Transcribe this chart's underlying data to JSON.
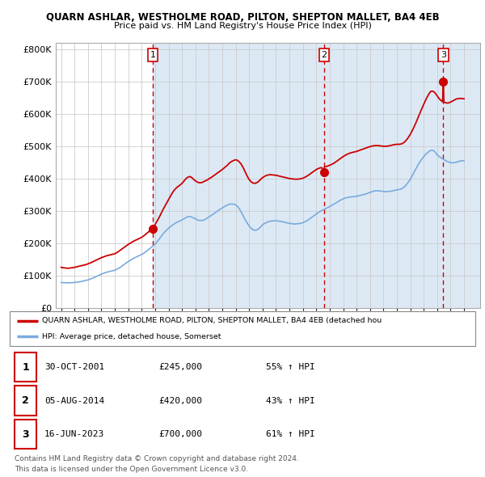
{
  "title": "QUARN ASHLAR, WESTHOLME ROAD, PILTON, SHEPTON MALLET, BA4 4EB",
  "subtitle": "Price paid vs. HM Land Registry's House Price Index (HPI)",
  "ylabel_ticks": [
    "£0",
    "£100K",
    "£200K",
    "£300K",
    "£400K",
    "£500K",
    "£600K",
    "£700K",
    "£800K"
  ],
  "ytick_values": [
    0,
    100000,
    200000,
    300000,
    400000,
    500000,
    600000,
    700000,
    800000
  ],
  "ylim": [
    0,
    820000
  ],
  "xlim_start": 1994.6,
  "xlim_end": 2026.2,
  "red_color": "#cc0000",
  "blue_color": "#7aaadd",
  "shade_color": "#dce9f5",
  "dashed_color": "#cc0000",
  "grid_color": "#cccccc",
  "legend_label_red": "QUARN ASHLAR, WESTHOLME ROAD, PILTON, SHEPTON MALLET, BA4 4EB (detached hou",
  "legend_label_blue": "HPI: Average price, detached house, Somerset",
  "sale_points": [
    {
      "date_num": 2001.83,
      "price": 245000,
      "label": "1"
    },
    {
      "date_num": 2014.59,
      "price": 420000,
      "label": "2"
    },
    {
      "date_num": 2023.46,
      "price": 700000,
      "label": "3"
    }
  ],
  "table_rows": [
    {
      "num": "1",
      "date": "30-OCT-2001",
      "price": "£245,000",
      "hpi": "55% ↑ HPI"
    },
    {
      "num": "2",
      "date": "05-AUG-2014",
      "price": "£420,000",
      "hpi": "43% ↑ HPI"
    },
    {
      "num": "3",
      "date": "16-JUN-2023",
      "price": "£700,000",
      "hpi": "61% ↑ HPI"
    }
  ],
  "footnote1": "Contains HM Land Registry data © Crown copyright and database right 2024.",
  "footnote2": "This data is licensed under the Open Government Licence v3.0.",
  "red_hpi_data": [
    [
      1995.0,
      125000
    ],
    [
      1995.1,
      124000
    ],
    [
      1995.2,
      123500
    ],
    [
      1995.3,
      123000
    ],
    [
      1995.4,
      122500
    ],
    [
      1995.5,
      122000
    ],
    [
      1995.6,
      122500
    ],
    [
      1995.7,
      123000
    ],
    [
      1995.8,
      123500
    ],
    [
      1995.9,
      124000
    ],
    [
      1996.0,
      125000
    ],
    [
      1996.1,
      126000
    ],
    [
      1996.2,
      127000
    ],
    [
      1996.3,
      128000
    ],
    [
      1996.5,
      130000
    ],
    [
      1996.7,
      132000
    ],
    [
      1996.9,
      134000
    ],
    [
      1997.0,
      136000
    ],
    [
      1997.2,
      139000
    ],
    [
      1997.4,
      143000
    ],
    [
      1997.6,
      147000
    ],
    [
      1997.8,
      151000
    ],
    [
      1998.0,
      155000
    ],
    [
      1998.2,
      158000
    ],
    [
      1998.4,
      161000
    ],
    [
      1998.6,
      163000
    ],
    [
      1998.8,
      165000
    ],
    [
      1999.0,
      167000
    ],
    [
      1999.2,
      172000
    ],
    [
      1999.4,
      178000
    ],
    [
      1999.6,
      184000
    ],
    [
      1999.8,
      190000
    ],
    [
      2000.0,
      196000
    ],
    [
      2000.2,
      201000
    ],
    [
      2000.4,
      206000
    ],
    [
      2000.6,
      210000
    ],
    [
      2000.8,
      214000
    ],
    [
      2001.0,
      218000
    ],
    [
      2001.2,
      224000
    ],
    [
      2001.4,
      231000
    ],
    [
      2001.6,
      238000
    ],
    [
      2001.83,
      245000
    ],
    [
      2002.0,
      258000
    ],
    [
      2002.2,
      272000
    ],
    [
      2002.4,
      288000
    ],
    [
      2002.6,
      305000
    ],
    [
      2002.8,
      320000
    ],
    [
      2003.0,
      335000
    ],
    [
      2003.2,
      350000
    ],
    [
      2003.4,
      363000
    ],
    [
      2003.6,
      372000
    ],
    [
      2003.8,
      378000
    ],
    [
      2004.0,
      385000
    ],
    [
      2004.1,
      390000
    ],
    [
      2004.2,
      395000
    ],
    [
      2004.3,
      400000
    ],
    [
      2004.4,
      403000
    ],
    [
      2004.5,
      405000
    ],
    [
      2004.6,
      406000
    ],
    [
      2004.7,
      404000
    ],
    [
      2004.8,
      400000
    ],
    [
      2004.9,
      396000
    ],
    [
      2005.0,
      393000
    ],
    [
      2005.1,
      390000
    ],
    [
      2005.2,
      388000
    ],
    [
      2005.3,
      387000
    ],
    [
      2005.4,
      387000
    ],
    [
      2005.5,
      388000
    ],
    [
      2005.6,
      390000
    ],
    [
      2005.7,
      392000
    ],
    [
      2005.8,
      394000
    ],
    [
      2005.9,
      396000
    ],
    [
      2006.0,
      399000
    ],
    [
      2006.2,
      404000
    ],
    [
      2006.4,
      410000
    ],
    [
      2006.6,
      416000
    ],
    [
      2006.8,
      422000
    ],
    [
      2007.0,
      428000
    ],
    [
      2007.2,
      435000
    ],
    [
      2007.4,
      442000
    ],
    [
      2007.5,
      447000
    ],
    [
      2007.6,
      450000
    ],
    [
      2007.7,
      453000
    ],
    [
      2007.8,
      455000
    ],
    [
      2007.9,
      457000
    ],
    [
      2008.0,
      458000
    ],
    [
      2008.1,
      457000
    ],
    [
      2008.2,
      454000
    ],
    [
      2008.3,
      450000
    ],
    [
      2008.4,
      445000
    ],
    [
      2008.5,
      438000
    ],
    [
      2008.6,
      430000
    ],
    [
      2008.7,
      421000
    ],
    [
      2008.8,
      412000
    ],
    [
      2008.9,
      404000
    ],
    [
      2009.0,
      397000
    ],
    [
      2009.1,
      392000
    ],
    [
      2009.2,
      388000
    ],
    [
      2009.3,
      386000
    ],
    [
      2009.4,
      385000
    ],
    [
      2009.5,
      386000
    ],
    [
      2009.6,
      388000
    ],
    [
      2009.7,
      391000
    ],
    [
      2009.8,
      395000
    ],
    [
      2009.9,
      399000
    ],
    [
      2010.0,
      403000
    ],
    [
      2010.2,
      408000
    ],
    [
      2010.4,
      411000
    ],
    [
      2010.6,
      412000
    ],
    [
      2010.8,
      411000
    ],
    [
      2011.0,
      410000
    ],
    [
      2011.2,
      408000
    ],
    [
      2011.4,
      406000
    ],
    [
      2011.6,
      404000
    ],
    [
      2011.8,
      402000
    ],
    [
      2012.0,
      400000
    ],
    [
      2012.2,
      399000
    ],
    [
      2012.4,
      398000
    ],
    [
      2012.6,
      398000
    ],
    [
      2012.8,
      399000
    ],
    [
      2013.0,
      401000
    ],
    [
      2013.2,
      405000
    ],
    [
      2013.4,
      410000
    ],
    [
      2013.6,
      416000
    ],
    [
      2013.8,
      422000
    ],
    [
      2014.0,
      428000
    ],
    [
      2014.2,
      432000
    ],
    [
      2014.4,
      434000
    ],
    [
      2014.59,
      420000
    ],
    [
      2014.6,
      436000
    ],
    [
      2014.8,
      438000
    ],
    [
      2015.0,
      441000
    ],
    [
      2015.2,
      445000
    ],
    [
      2015.4,
      450000
    ],
    [
      2015.6,
      456000
    ],
    [
      2015.8,
      462000
    ],
    [
      2016.0,
      468000
    ],
    [
      2016.2,
      473000
    ],
    [
      2016.4,
      477000
    ],
    [
      2016.6,
      480000
    ],
    [
      2016.8,
      482000
    ],
    [
      2017.0,
      484000
    ],
    [
      2017.2,
      487000
    ],
    [
      2017.4,
      490000
    ],
    [
      2017.6,
      493000
    ],
    [
      2017.8,
      496000
    ],
    [
      2018.0,
      499000
    ],
    [
      2018.2,
      501000
    ],
    [
      2018.4,
      502000
    ],
    [
      2018.6,
      502000
    ],
    [
      2018.8,
      501000
    ],
    [
      2019.0,
      500000
    ],
    [
      2019.2,
      500000
    ],
    [
      2019.4,
      501000
    ],
    [
      2019.6,
      503000
    ],
    [
      2019.8,
      505000
    ],
    [
      2020.0,
      506000
    ],
    [
      2020.2,
      506000
    ],
    [
      2020.4,
      508000
    ],
    [
      2020.6,
      514000
    ],
    [
      2020.8,
      524000
    ],
    [
      2021.0,
      537000
    ],
    [
      2021.2,
      553000
    ],
    [
      2021.4,
      571000
    ],
    [
      2021.6,
      591000
    ],
    [
      2021.8,
      611000
    ],
    [
      2022.0,
      630000
    ],
    [
      2022.2,
      648000
    ],
    [
      2022.4,
      663000
    ],
    [
      2022.5,
      669000
    ],
    [
      2022.6,
      671000
    ],
    [
      2022.7,
      670000
    ],
    [
      2022.8,
      667000
    ],
    [
      2022.9,
      662000
    ],
    [
      2023.0,
      656000
    ],
    [
      2023.1,
      650000
    ],
    [
      2023.2,
      645000
    ],
    [
      2023.3,
      641000
    ],
    [
      2023.4,
      638000
    ],
    [
      2023.46,
      700000
    ],
    [
      2023.5,
      637000
    ],
    [
      2023.6,
      635000
    ],
    [
      2023.7,
      634000
    ],
    [
      2023.8,
      634000
    ],
    [
      2023.9,
      635000
    ],
    [
      2024.0,
      637000
    ],
    [
      2024.2,
      641000
    ],
    [
      2024.4,
      646000
    ],
    [
      2024.6,
      648000
    ],
    [
      2024.8,
      648000
    ],
    [
      2025.0,
      647000
    ]
  ],
  "blue_hpi_data": [
    [
      1995.0,
      78000
    ],
    [
      1995.2,
      77500
    ],
    [
      1995.4,
      77000
    ],
    [
      1995.6,
      77000
    ],
    [
      1995.8,
      77500
    ],
    [
      1996.0,
      78000
    ],
    [
      1996.2,
      79000
    ],
    [
      1996.4,
      80500
    ],
    [
      1996.6,
      82000
    ],
    [
      1996.8,
      84000
    ],
    [
      1997.0,
      86000
    ],
    [
      1997.2,
      89000
    ],
    [
      1997.4,
      92500
    ],
    [
      1997.6,
      96000
    ],
    [
      1997.8,
      100000
    ],
    [
      1998.0,
      104000
    ],
    [
      1998.2,
      107000
    ],
    [
      1998.4,
      110000
    ],
    [
      1998.6,
      112000
    ],
    [
      1998.8,
      114000
    ],
    [
      1999.0,
      116000
    ],
    [
      1999.2,
      120000
    ],
    [
      1999.4,
      125000
    ],
    [
      1999.6,
      131000
    ],
    [
      1999.8,
      137000
    ],
    [
      2000.0,
      143000
    ],
    [
      2000.2,
      148000
    ],
    [
      2000.4,
      153000
    ],
    [
      2000.6,
      157000
    ],
    [
      2000.8,
      161000
    ],
    [
      2001.0,
      165000
    ],
    [
      2001.2,
      170000
    ],
    [
      2001.4,
      176000
    ],
    [
      2001.6,
      183000
    ],
    [
      2001.8,
      190000
    ],
    [
      2002.0,
      197000
    ],
    [
      2002.2,
      207000
    ],
    [
      2002.4,
      218000
    ],
    [
      2002.6,
      229000
    ],
    [
      2002.8,
      238000
    ],
    [
      2003.0,
      246000
    ],
    [
      2003.2,
      253000
    ],
    [
      2003.4,
      259000
    ],
    [
      2003.6,
      264000
    ],
    [
      2003.8,
      268000
    ],
    [
      2004.0,
      272000
    ],
    [
      2004.2,
      277000
    ],
    [
      2004.4,
      281000
    ],
    [
      2004.5,
      282000
    ],
    [
      2004.6,
      282000
    ],
    [
      2004.7,
      281000
    ],
    [
      2004.8,
      279000
    ],
    [
      2004.9,
      277000
    ],
    [
      2005.0,
      275000
    ],
    [
      2005.1,
      273000
    ],
    [
      2005.2,
      271000
    ],
    [
      2005.3,
      270000
    ],
    [
      2005.4,
      270000
    ],
    [
      2005.5,
      270000
    ],
    [
      2005.6,
      271000
    ],
    [
      2005.7,
      273000
    ],
    [
      2005.8,
      275000
    ],
    [
      2005.9,
      278000
    ],
    [
      2006.0,
      281000
    ],
    [
      2006.2,
      286000
    ],
    [
      2006.4,
      292000
    ],
    [
      2006.6,
      298000
    ],
    [
      2006.8,
      304000
    ],
    [
      2007.0,
      309000
    ],
    [
      2007.2,
      314000
    ],
    [
      2007.4,
      318000
    ],
    [
      2007.5,
      320000
    ],
    [
      2007.6,
      321000
    ],
    [
      2007.7,
      321000
    ],
    [
      2007.8,
      321000
    ],
    [
      2007.9,
      320000
    ],
    [
      2008.0,
      318000
    ],
    [
      2008.1,
      315000
    ],
    [
      2008.2,
      310000
    ],
    [
      2008.3,
      304000
    ],
    [
      2008.4,
      297000
    ],
    [
      2008.5,
      289000
    ],
    [
      2008.6,
      281000
    ],
    [
      2008.7,
      273000
    ],
    [
      2008.8,
      266000
    ],
    [
      2008.9,
      259000
    ],
    [
      2009.0,
      253000
    ],
    [
      2009.1,
      248000
    ],
    [
      2009.2,
      244000
    ],
    [
      2009.3,
      241000
    ],
    [
      2009.4,
      240000
    ],
    [
      2009.5,
      240000
    ],
    [
      2009.6,
      241000
    ],
    [
      2009.7,
      244000
    ],
    [
      2009.8,
      248000
    ],
    [
      2009.9,
      252000
    ],
    [
      2010.0,
      257000
    ],
    [
      2010.2,
      262000
    ],
    [
      2010.4,
      266000
    ],
    [
      2010.6,
      268000
    ],
    [
      2010.8,
      269000
    ],
    [
      2011.0,
      269000
    ],
    [
      2011.2,
      268000
    ],
    [
      2011.4,
      267000
    ],
    [
      2011.6,
      265000
    ],
    [
      2011.8,
      263000
    ],
    [
      2012.0,
      261000
    ],
    [
      2012.2,
      260000
    ],
    [
      2012.4,
      259000
    ],
    [
      2012.6,
      260000
    ],
    [
      2012.8,
      261000
    ],
    [
      2013.0,
      263000
    ],
    [
      2013.2,
      267000
    ],
    [
      2013.4,
      272000
    ],
    [
      2013.6,
      278000
    ],
    [
      2013.8,
      284000
    ],
    [
      2014.0,
      290000
    ],
    [
      2014.2,
      296000
    ],
    [
      2014.4,
      301000
    ],
    [
      2014.6,
      305000
    ],
    [
      2014.8,
      309000
    ],
    [
      2015.0,
      313000
    ],
    [
      2015.2,
      318000
    ],
    [
      2015.4,
      323000
    ],
    [
      2015.6,
      328000
    ],
    [
      2015.8,
      333000
    ],
    [
      2016.0,
      337000
    ],
    [
      2016.2,
      340000
    ],
    [
      2016.4,
      342000
    ],
    [
      2016.6,
      343000
    ],
    [
      2016.8,
      344000
    ],
    [
      2017.0,
      345000
    ],
    [
      2017.2,
      347000
    ],
    [
      2017.4,
      349000
    ],
    [
      2017.6,
      351000
    ],
    [
      2017.8,
      354000
    ],
    [
      2018.0,
      357000
    ],
    [
      2018.2,
      360000
    ],
    [
      2018.4,
      362000
    ],
    [
      2018.6,
      362000
    ],
    [
      2018.8,
      361000
    ],
    [
      2019.0,
      360000
    ],
    [
      2019.2,
      359000
    ],
    [
      2019.4,
      360000
    ],
    [
      2019.6,
      361000
    ],
    [
      2019.8,
      363000
    ],
    [
      2020.0,
      365000
    ],
    [
      2020.2,
      366000
    ],
    [
      2020.4,
      369000
    ],
    [
      2020.6,
      376000
    ],
    [
      2020.8,
      386000
    ],
    [
      2021.0,
      398000
    ],
    [
      2021.2,
      413000
    ],
    [
      2021.4,
      429000
    ],
    [
      2021.6,
      444000
    ],
    [
      2021.8,
      457000
    ],
    [
      2022.0,
      468000
    ],
    [
      2022.2,
      477000
    ],
    [
      2022.4,
      484000
    ],
    [
      2022.5,
      487000
    ],
    [
      2022.6,
      488000
    ],
    [
      2022.7,
      487000
    ],
    [
      2022.8,
      484000
    ],
    [
      2022.9,
      479000
    ],
    [
      2023.0,
      473000
    ],
    [
      2023.2,
      467000
    ],
    [
      2023.4,
      461000
    ],
    [
      2023.6,
      456000
    ],
    [
      2023.8,
      452000
    ],
    [
      2024.0,
      449000
    ],
    [
      2024.2,
      449000
    ],
    [
      2024.4,
      450000
    ],
    [
      2024.6,
      453000
    ],
    [
      2024.8,
      455000
    ],
    [
      2025.0,
      455000
    ]
  ]
}
